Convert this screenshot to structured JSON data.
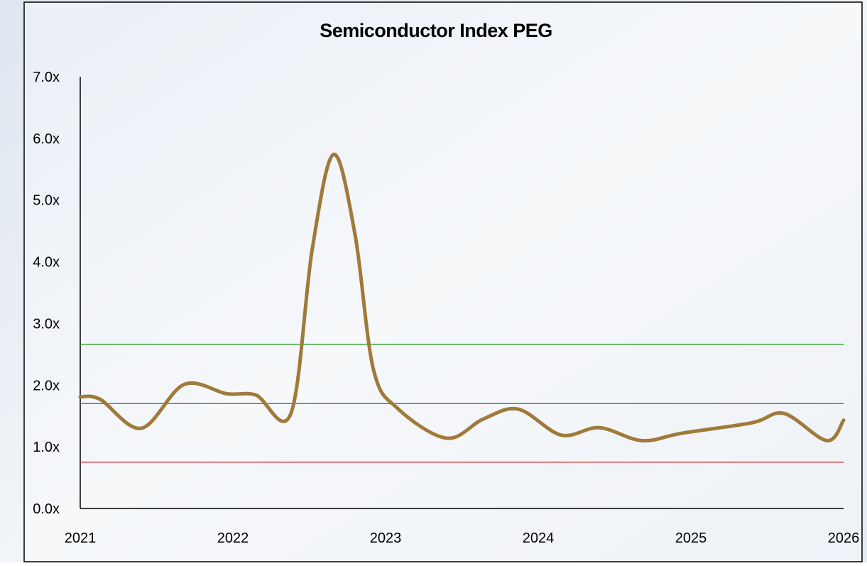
{
  "chart_data": {
    "type": "line",
    "title": "Semiconductor Index PEG",
    "x": [
      2021.0,
      2021.13,
      2021.4,
      2021.68,
      2021.96,
      2022.15,
      2022.38,
      2022.52,
      2022.66,
      2022.8,
      2022.92,
      2023.08,
      2023.4,
      2023.64,
      2023.87,
      2024.15,
      2024.4,
      2024.68,
      2024.94,
      2025.4,
      2025.61,
      2025.89,
      2026.0
    ],
    "series": [
      {
        "color": "#a07a3a",
        "values": [
          1.81,
          1.77,
          1.3,
          2.01,
          1.86,
          1.84,
          1.54,
          4.21,
          5.74,
          4.44,
          2.26,
          1.62,
          1.14,
          1.45,
          1.61,
          1.19,
          1.31,
          1.1,
          1.22,
          1.39,
          1.54,
          1.1,
          1.43
        ]
      }
    ],
    "reference_lines": [
      {
        "value": 2.66,
        "color": "#2ca02c"
      },
      {
        "value": 1.7,
        "color": "#1f77b4"
      },
      {
        "value": 0.75,
        "color": "#d62728"
      }
    ],
    "xlim": [
      2021,
      2026
    ],
    "xticks": [
      2021,
      2022,
      2023,
      2024,
      2025,
      2026
    ],
    "ylim": [
      0,
      7
    ],
    "yticks": [
      {
        "value": 0,
        "label": "0.0x"
      },
      {
        "value": 1,
        "label": "1.0x"
      },
      {
        "value": 2,
        "label": "2.0x"
      },
      {
        "value": 3,
        "label": "3.0x"
      },
      {
        "value": 4,
        "label": "4.0x"
      },
      {
        "value": 5,
        "label": "5.0x"
      },
      {
        "value": 6,
        "label": "6.0x"
      },
      {
        "value": 7,
        "label": "7.0x"
      }
    ]
  }
}
